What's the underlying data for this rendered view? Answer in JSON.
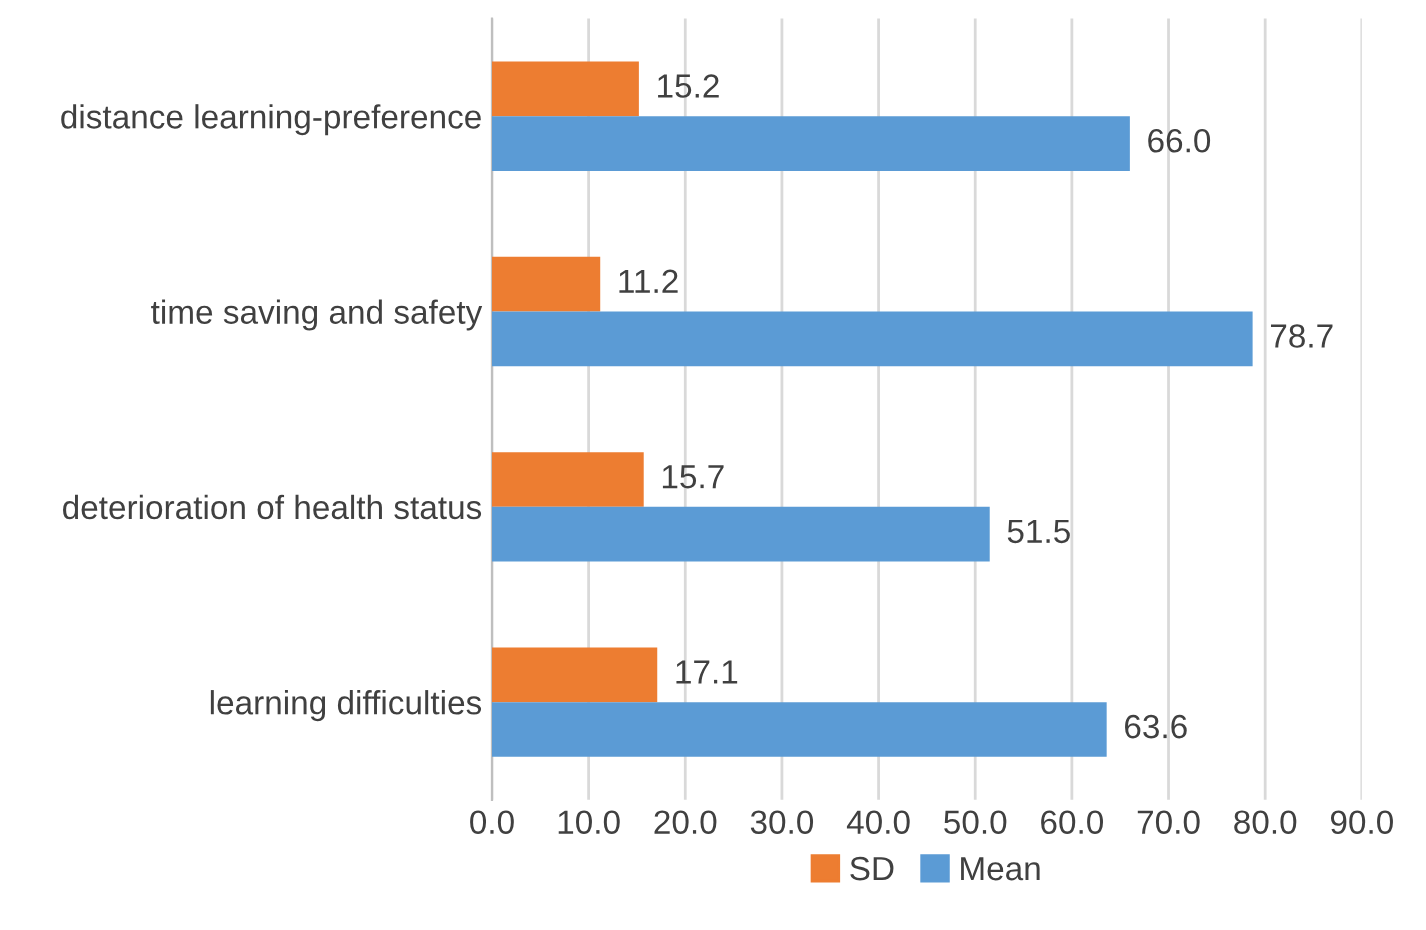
{
  "chart_data": {
    "type": "bar",
    "orientation": "horizontal",
    "categories": [
      "distance learning-preference",
      "time saving and safety",
      "deterioration of health status",
      "learning difficulties"
    ],
    "series": [
      {
        "name": "SD",
        "color": "#ed7d31",
        "values": [
          15.2,
          11.2,
          15.7,
          17.1
        ],
        "value_labels": [
          "15.2",
          "11.2",
          "15.7",
          "17.1"
        ]
      },
      {
        "name": "Mean",
        "color": "#5b9bd5",
        "values": [
          66.0,
          78.7,
          51.5,
          63.6
        ],
        "value_labels": [
          "66.0",
          "78.7",
          "51.5",
          "63.6"
        ]
      }
    ],
    "xlim": [
      0,
      90
    ],
    "xticks": [
      {
        "value": 0,
        "label": "0.0"
      },
      {
        "value": 10,
        "label": "10.0"
      },
      {
        "value": 20,
        "label": "20.0"
      },
      {
        "value": 30,
        "label": "30.0"
      },
      {
        "value": 40,
        "label": "40.0"
      },
      {
        "value": 50,
        "label": "50.0"
      },
      {
        "value": 60,
        "label": "60.0"
      },
      {
        "value": 70,
        "label": "70.0"
      },
      {
        "value": 80,
        "label": "80.0"
      },
      {
        "value": 90,
        "label": "90.0"
      }
    ],
    "grid": "x",
    "legend": "bottom"
  }
}
